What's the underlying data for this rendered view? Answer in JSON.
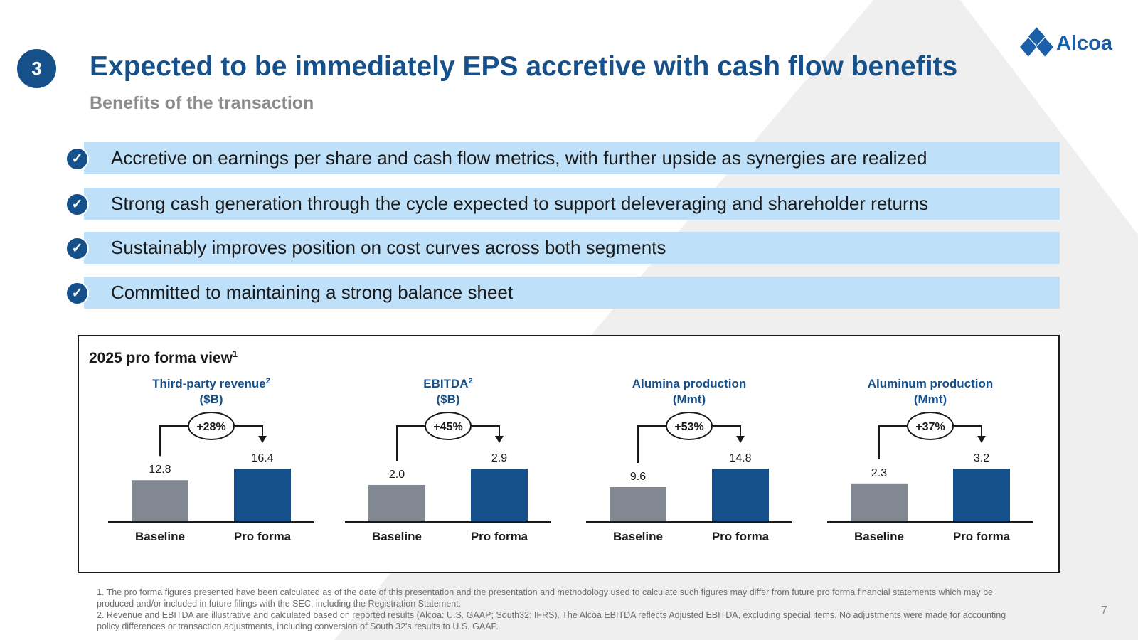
{
  "section_number": "3",
  "logo_text": "Alcoa",
  "title": "Expected to be immediately EPS accretive with cash flow benefits",
  "subtitle": "Benefits of the transaction",
  "check_glyph": "✓",
  "benefits": [
    "Accretive on earnings per share and cash flow metrics, with further upside as synergies are realized",
    "Strong cash generation through the cycle expected to support deleveraging and shareholder returns",
    "Sustainably improves position on cost curves across both segments",
    "Committed to maintaining a strong balance sheet"
  ],
  "panel": {
    "title": "2025 pro forma view",
    "title_sup": "1"
  },
  "colors": {
    "primary": "#16508a",
    "baseline_bar": "#818891",
    "proforma_bar": "#16508a",
    "benefit_band": "#bfe0f9",
    "triangle_bg": "#efefef"
  },
  "chart_data": [
    {
      "type": "bar",
      "title": "Third-party revenue",
      "title_sup": "2",
      "unit_label": "($B)",
      "categories": [
        "Baseline",
        "Pro forma"
      ],
      "values": [
        12.8,
        16.4
      ],
      "value_labels": [
        "12.8",
        "16.4"
      ],
      "change_label": "+28%"
    },
    {
      "type": "bar",
      "title": "EBITDA",
      "title_sup": "2",
      "unit_label": "($B)",
      "categories": [
        "Baseline",
        "Pro forma"
      ],
      "values": [
        2.0,
        2.9
      ],
      "value_labels": [
        "2.0",
        "2.9"
      ],
      "change_label": "+45%"
    },
    {
      "type": "bar",
      "title": "Alumina production",
      "title_sup": "",
      "unit_label": "(Mmt)",
      "categories": [
        "Baseline",
        "Pro forma"
      ],
      "values": [
        9.6,
        14.8
      ],
      "value_labels": [
        "9.6",
        "14.8"
      ],
      "change_label": "+53%"
    },
    {
      "type": "bar",
      "title": "Aluminum production",
      "title_sup": "",
      "unit_label": "(Mmt)",
      "categories": [
        "Baseline",
        "Pro forma"
      ],
      "values": [
        2.3,
        3.2
      ],
      "value_labels": [
        "2.3",
        "3.2"
      ],
      "change_label": "+37%"
    }
  ],
  "footnotes": [
    "1. The pro forma figures presented have been calculated as of the date of this presentation and the presentation and methodology used to calculate such figures may differ from future pro forma financial statements which may be produced and/or included in future filings with the SEC, including the Registration Statement.",
    "2. Revenue and EBITDA are illustrative and calculated based on reported results (Alcoa: U.S. GAAP; South32: IFRS). The Alcoa EBITDA reflects Adjusted EBITDA, excluding special items. No adjustments were made for accounting policy differences or transaction adjustments, including conversion of South 32's results to U.S. GAAP."
  ],
  "page_number": "7"
}
